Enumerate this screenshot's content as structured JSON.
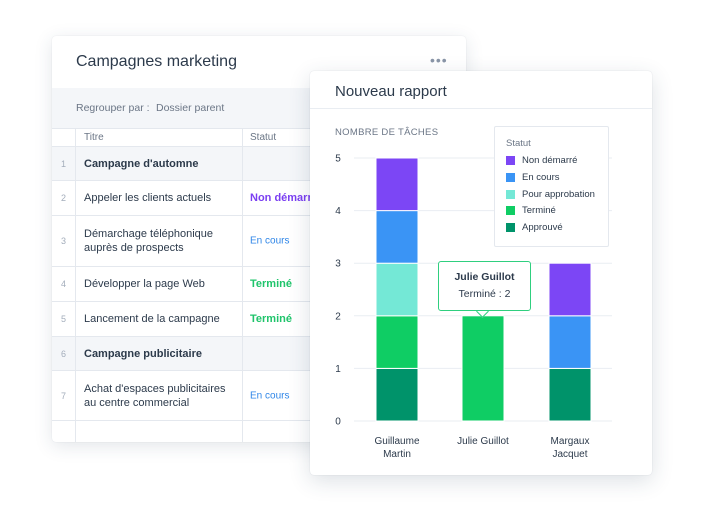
{
  "table_card": {
    "title": "Campagnes marketing",
    "menu_icon": "more-horizontal-icon",
    "group_by_label": "Regrouper par :",
    "group_by_value": "Dossier parent",
    "columns": {
      "title": "Titre",
      "status": "Statut"
    },
    "rows": [
      {
        "num": "1",
        "title": "Campagne d'automne",
        "status": "",
        "type": "group"
      },
      {
        "num": "2",
        "title": "Appeler les clients actuels",
        "status": "Non démarré",
        "status_color": "#7b3ff2",
        "type": "item"
      },
      {
        "num": "3",
        "title": "Démarchage téléphonique auprès de prospects",
        "status": "En cours",
        "status_color": "#2f86e8",
        "type": "item"
      },
      {
        "num": "4",
        "title": "Développer la page Web",
        "status": "Terminé",
        "status_color": "#1fc46b",
        "type": "item"
      },
      {
        "num": "5",
        "title": "Lancement de la campagne",
        "status": "Terminé",
        "status_color": "#1fc46b",
        "type": "item"
      },
      {
        "num": "6",
        "title": "Campagne publicitaire",
        "status": "",
        "type": "group"
      },
      {
        "num": "7",
        "title": "Achat d'espaces publicitaires au centre commercial",
        "status": "En cours",
        "status_color": "#2f86e8",
        "type": "item"
      },
      {
        "num": "",
        "title": "",
        "status": "",
        "type": "item"
      }
    ]
  },
  "report_card": {
    "title": "Nouveau rapport",
    "tooltip": {
      "name": "Julie Guillot",
      "value": "Terminé : 2"
    }
  },
  "chart_data": {
    "type": "bar",
    "stacked": true,
    "ylabel": "NOMBRE DE TÂCHES",
    "ylim": [
      0,
      5
    ],
    "yticks": [
      0,
      1,
      2,
      3,
      4,
      5
    ],
    "grid": true,
    "legend_title": "Statut",
    "legend_position": "top-right",
    "categories": [
      "Guillaume Martin",
      "Julie Guillot",
      "Margaux Jacquet"
    ],
    "category_lines": [
      [
        "Guillaume",
        "Martin"
      ],
      [
        "Julie Guillot"
      ],
      [
        "Margaux",
        "Jacquet"
      ]
    ],
    "series": [
      {
        "name": "Approuvé",
        "color": "#00936a",
        "values": [
          1,
          0,
          1
        ]
      },
      {
        "name": "Terminé",
        "color": "#0fcd64",
        "values": [
          1,
          2,
          0
        ]
      },
      {
        "name": "Pour approbation",
        "color": "#74e8d6",
        "values": [
          1,
          0,
          0
        ]
      },
      {
        "name": "En cours",
        "color": "#3a94f5",
        "values": [
          1,
          0,
          1
        ]
      },
      {
        "name": "Non démarré",
        "color": "#7c46f5",
        "values": [
          1,
          0,
          1
        ]
      }
    ],
    "legend_order": [
      "Non démarré",
      "En cours",
      "Pour approbation",
      "Terminé",
      "Approuvé"
    ]
  }
}
